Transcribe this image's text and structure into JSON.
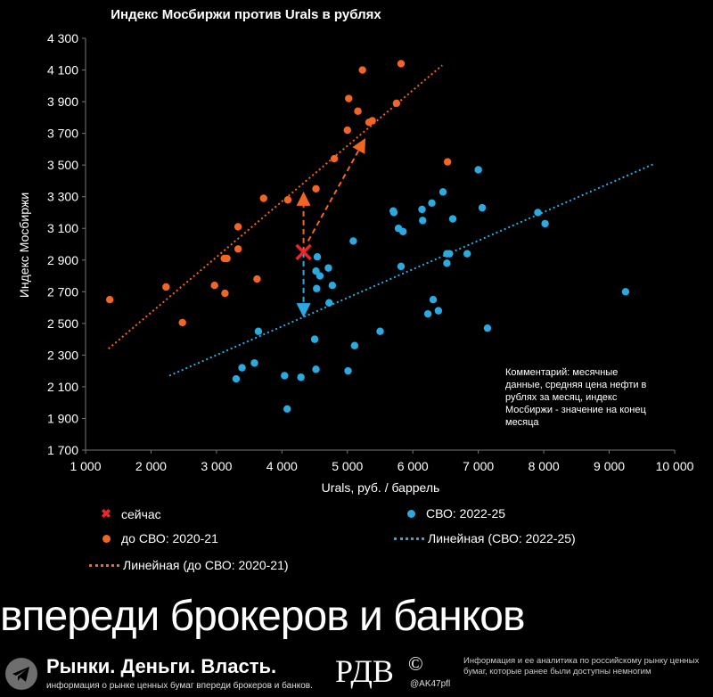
{
  "chart_data": {
    "type": "scatter",
    "title": "Индекс Мосбиржи против Urals в рублях",
    "xlabel": "Urals, руб. / баррель",
    "ylabel": "Индекс Мосбиржи",
    "xlim": [
      1000,
      10000
    ],
    "ylim": [
      1700,
      4300
    ],
    "x_ticks": [
      1000,
      2000,
      3000,
      4000,
      5000,
      6000,
      7000,
      8000,
      9000,
      10000
    ],
    "x_tick_labels": [
      "1 000",
      "2 000",
      "3 000",
      "4 000",
      "5 000",
      "6 000",
      "7 000",
      "8 000",
      "9 000",
      "10 000"
    ],
    "y_ticks": [
      1700,
      1900,
      2100,
      2300,
      2500,
      2700,
      2900,
      3100,
      3300,
      3500,
      3700,
      3900,
      4100,
      4300
    ],
    "y_tick_labels": [
      "1 700",
      "1 900",
      "2 100",
      "2 300",
      "2 500",
      "2 700",
      "2 900",
      "3 100",
      "3 300",
      "3 500",
      "3 700",
      "3 900",
      "4 100",
      "4 300"
    ],
    "series": [
      {
        "name": "до СВО: 2020-21",
        "color": "#f26522",
        "points": [
          [
            1370,
            2650
          ],
          [
            2230,
            2730
          ],
          [
            2480,
            2505
          ],
          [
            3120,
            2910
          ],
          [
            3160,
            2910
          ],
          [
            2970,
            2740
          ],
          [
            3130,
            2690
          ],
          [
            3330,
            2970
          ],
          [
            3330,
            3110
          ],
          [
            3620,
            2780
          ],
          [
            3720,
            3290
          ],
          [
            4090,
            3280
          ],
          [
            4520,
            3350
          ],
          [
            4800,
            3540
          ],
          [
            5000,
            3720
          ],
          [
            5020,
            3920
          ],
          [
            5160,
            3840
          ],
          [
            5230,
            4100
          ],
          [
            5380,
            3780
          ],
          [
            5330,
            3770
          ],
          [
            5750,
            3890
          ],
          [
            5820,
            4140
          ],
          [
            6530,
            3520
          ]
        ]
      },
      {
        "name": "СВО: 2022-25",
        "color": "#29abe2",
        "points": [
          [
            3300,
            2150
          ],
          [
            3390,
            2220
          ],
          [
            3580,
            2250
          ],
          [
            3640,
            2450
          ],
          [
            4040,
            2170
          ],
          [
            4080,
            1960
          ],
          [
            4290,
            2160
          ],
          [
            4500,
            2400
          ],
          [
            4520,
            2210
          ],
          [
            4520,
            2830
          ],
          [
            4530,
            2720
          ],
          [
            4540,
            2920
          ],
          [
            4580,
            2800
          ],
          [
            4710,
            2850
          ],
          [
            4720,
            2630
          ],
          [
            4770,
            2740
          ],
          [
            5010,
            2200
          ],
          [
            5090,
            3020
          ],
          [
            5110,
            2360
          ],
          [
            5500,
            2450
          ],
          [
            5700,
            3210
          ],
          [
            5710,
            3200
          ],
          [
            5780,
            3100
          ],
          [
            5820,
            2860
          ],
          [
            5850,
            3080
          ],
          [
            6140,
            3220
          ],
          [
            6150,
            3150
          ],
          [
            6230,
            2560
          ],
          [
            6290,
            3260
          ],
          [
            6310,
            2650
          ],
          [
            6390,
            2580
          ],
          [
            6460,
            3330
          ],
          [
            6520,
            2940
          ],
          [
            6520,
            2880
          ],
          [
            6560,
            2940
          ],
          [
            6610,
            3160
          ],
          [
            6830,
            2940
          ],
          [
            7000,
            3470
          ],
          [
            7060,
            3230
          ],
          [
            7140,
            2470
          ],
          [
            7910,
            3200
          ],
          [
            8020,
            3130
          ],
          [
            9250,
            2700
          ]
        ]
      },
      {
        "name": "сейчас",
        "color": "#e8262b",
        "points": [
          [
            4330,
            2950
          ]
        ]
      }
    ],
    "trendlines": [
      {
        "name": "Линейная (до СВО: 2020-21)",
        "color": "#f26522",
        "from": [
          1350,
          2340
        ],
        "to": [
          6450,
          4130
        ]
      },
      {
        "name": "Линейная (СВО: 2022-25)",
        "color": "#29abe2",
        "from": [
          2280,
          2170
        ],
        "to": [
          9700,
          3510
        ]
      }
    ],
    "annotations": {
      "comment": "Комментарий: месячные данные, средняя цена нефти в рублях за месяц, индекс Мосбиржи - значение на конец месяца",
      "arrows": [
        {
          "color": "#f26522",
          "from": [
            4330,
            2950
          ],
          "to": [
            4330,
            3310
          ]
        },
        {
          "color": "#f26522",
          "from": [
            4400,
            3020
          ],
          "to": [
            5250,
            3650
          ]
        },
        {
          "color": "#29abe2",
          "from": [
            4330,
            2950
          ],
          "to": [
            4330,
            2560
          ]
        }
      ]
    },
    "legend_placement": "bottom",
    "grid": false
  },
  "legend": {
    "now": "сейчас",
    "svo": "СВО: 2022-25",
    "pre": "до СВО: 2020-21",
    "lin_svo": "Линейная (СВО: 2022-25)",
    "lin_pre": "Линейная (до СВО: 2020-21)"
  },
  "footer": {
    "banner": "впереди брокеров и банков",
    "brand": "Рынки. Деньги. Власть.",
    "brand_sub": "информация о рынке ценных бумаг впереди брокеров и банков.",
    "logo": "РДВ",
    "logo_mark": "©",
    "handle": "@AK47pfl",
    "info": "Информация и ее аналитика по российскому рынку ценных бумаг, которые ранее были доступны немногим",
    "icon": "telegram-icon"
  }
}
